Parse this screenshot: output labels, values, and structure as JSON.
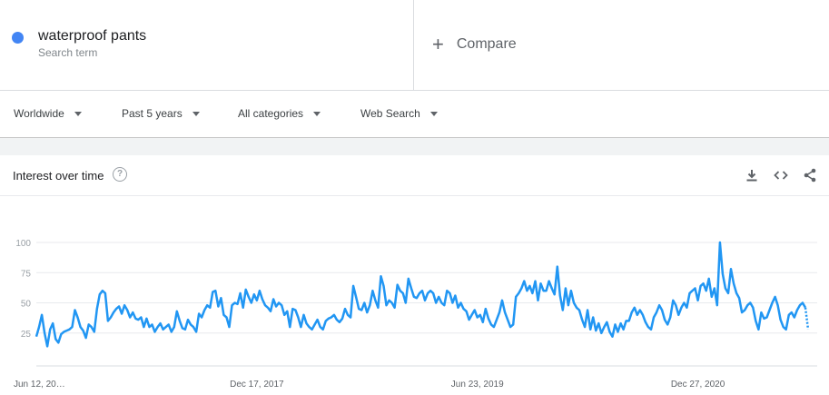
{
  "search_term": {
    "name": "waterproof pants",
    "subtitle": "Search term",
    "color": "#4285f4"
  },
  "compare": {
    "plus": "+",
    "label": "Compare"
  },
  "filters": [
    {
      "label": "Worldwide"
    },
    {
      "label": "Past 5 years"
    },
    {
      "label": "All categories"
    },
    {
      "label": "Web Search"
    }
  ],
  "card": {
    "title": "Interest over time",
    "help": "?",
    "icons": [
      "download-icon",
      "embed-icon",
      "share-icon"
    ]
  },
  "chart_data": {
    "type": "line",
    "title": "Interest over time",
    "xlabel": "",
    "ylabel": "",
    "ylim": [
      0,
      100
    ],
    "y_ticks": [
      25,
      50,
      75,
      100
    ],
    "x_tick_labels": [
      "Jun 12, 20…",
      "Dec 17, 2017",
      "Jun 23, 2019",
      "Dec 27, 2020"
    ],
    "x_tick_index": [
      0,
      80,
      160,
      240
    ],
    "grid": true,
    "legend": "none",
    "series": [
      {
        "color": "#2196f3",
        "values": [
          22,
          30,
          40,
          25,
          14,
          28,
          33,
          20,
          17,
          24,
          26,
          27,
          28,
          30,
          44,
          38,
          30,
          27,
          21,
          32,
          30,
          26,
          45,
          57,
          60,
          58,
          35,
          38,
          42,
          45,
          47,
          41,
          48,
          44,
          38,
          42,
          37,
          36,
          38,
          30,
          37,
          30,
          32,
          26,
          30,
          33,
          28,
          30,
          32,
          26,
          30,
          43,
          35,
          29,
          28,
          36,
          32,
          30,
          26,
          41,
          38,
          44,
          48,
          46,
          59,
          60,
          47,
          54,
          40,
          38,
          30,
          48,
          50,
          49,
          58,
          46,
          61,
          55,
          50,
          57,
          52,
          60,
          53,
          48,
          46,
          43,
          53,
          47,
          50,
          48,
          40,
          43,
          30,
          45,
          44,
          38,
          30,
          40,
          33,
          30,
          28,
          32,
          36,
          30,
          28,
          35,
          37,
          38,
          40,
          36,
          34,
          37,
          45,
          40,
          38,
          64,
          55,
          45,
          44,
          50,
          42,
          48,
          60,
          52,
          46,
          72,
          64,
          48,
          52,
          50,
          46,
          65,
          60,
          58,
          50,
          70,
          62,
          55,
          54,
          58,
          60,
          52,
          58,
          60,
          58,
          50,
          55,
          50,
          48,
          60,
          58,
          50,
          56,
          46,
          50,
          45,
          43,
          36,
          40,
          44,
          38,
          40,
          34,
          45,
          37,
          32,
          30,
          36,
          42,
          52,
          42,
          36,
          30,
          32,
          55,
          58,
          62,
          68,
          60,
          64,
          58,
          68,
          52,
          66,
          60,
          60,
          68,
          62,
          57,
          80,
          56,
          44,
          62,
          48,
          60,
          50,
          46,
          44,
          36,
          30,
          44,
          28,
          38,
          27,
          33,
          25,
          30,
          34,
          26,
          22,
          32,
          26,
          33,
          28,
          35,
          35,
          42,
          46,
          40,
          44,
          40,
          34,
          30,
          28,
          38,
          42,
          48,
          44,
          36,
          32,
          38,
          52,
          48,
          40,
          46,
          50,
          46,
          58,
          60,
          62,
          52,
          64,
          66,
          60,
          70,
          55,
          62,
          48,
          100,
          74,
          62,
          58,
          78,
          66,
          58,
          54,
          42,
          44,
          48,
          50,
          46,
          35,
          28,
          42,
          37,
          38,
          44,
          50,
          55,
          48,
          36,
          30,
          28,
          40,
          42,
          38,
          44,
          48,
          50,
          46,
          28
        ]
      }
    ]
  }
}
